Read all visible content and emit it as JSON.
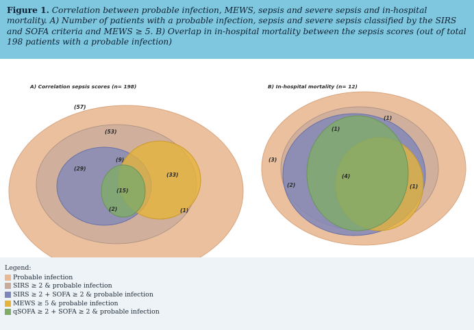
{
  "caption": {
    "lead": "Figure 1.",
    "text": "Correlation between probable infection, MEWS, sepsis and severe sepsis and in-hospital mortality. A) Number of patients with a probable infection, sepsis and severe sepsis classified by the SIRS and SOFA criteria and MEWS ≥ 5. B) Overlap in in-hospital mortality between the sepsis scores (out of total 198 patients with a probable infection)"
  },
  "panels": {
    "a": {
      "title": "A) Correlation sepsis scores (n= 198)",
      "labels": {
        "probable_infection": "(57)",
        "sirs": "(53)",
        "sirs_sofa": "(29)",
        "sirs_sofa_mews": "(9)",
        "mews": "(33)",
        "qsofa_center": "(15)",
        "qsofa_bottom": "(2)",
        "mews_edge": "(1)"
      }
    },
    "b": {
      "title": "B) In-hospital mortality (n= 12)",
      "labels": {
        "probable_infection": "(3)",
        "sirs": "(1)",
        "sirs_sofa_top": "(1)",
        "sirs_sofa": "(2)",
        "qsofa_center": "(4)",
        "mews": "(1)"
      }
    }
  },
  "legend": {
    "title": "Legend:",
    "items": [
      {
        "label": "Probable infection",
        "color": "#e8b995"
      },
      {
        "label": "SIRS ≥ 2 & probable infection",
        "color": "#c9ab9c"
      },
      {
        "label": "SIRS ≥ 2 + SOFA ≥ 2 & probable infection",
        "color": "#7f86b9"
      },
      {
        "label": "MEWS ≥ 5 & probable infection",
        "color": "#e6b43a"
      },
      {
        "label": "qSOFA ≥ 2 + SOFA ≥ 2 & probable infection",
        "color": "#7fab69"
      }
    ]
  },
  "colors": {
    "header_bg": "#7fc6df",
    "probable_infection": "#e8b995",
    "sirs": "#c9ab9c",
    "sirs_sofa": "#7f86b9",
    "mews": "#e6b43a",
    "qsofa": "#7fab69"
  }
}
